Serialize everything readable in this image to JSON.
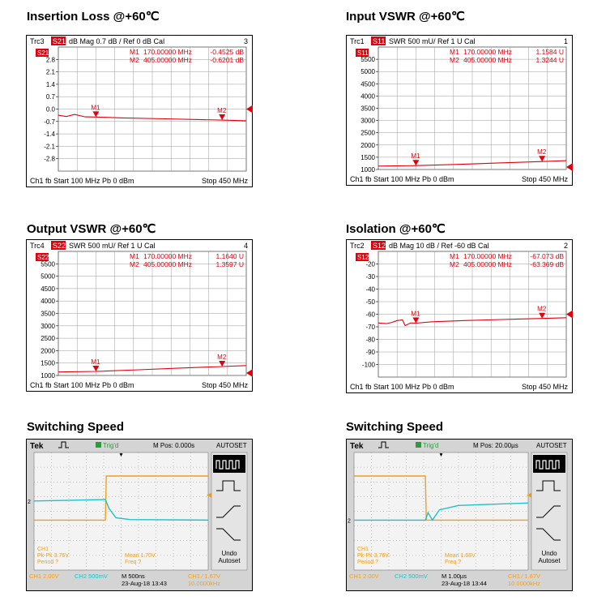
{
  "panels": [
    {
      "title": "Insertion Loss @+60℃",
      "trace": "Trc3",
      "param": "S21",
      "format": "dB Mag  0.7 dB /  Ref 0 dB   Cal",
      "num": "3",
      "markers": [
        {
          "id": "M1",
          "freq": "170.00000 MHz",
          "value": "-0.4525 dB"
        },
        {
          "id": "M2",
          "freq": "405.00000 MHz",
          "value": "-0.6201 dB"
        }
      ],
      "footer": {
        "left": "Ch1  fb  Start  100 MHz  Pb  0 dBm",
        "right": "Stop  450 MHz"
      }
    },
    {
      "title": "Input VSWR @+60℃",
      "trace": "Trc1",
      "param": "S11",
      "format": "SWR  500 mU/  Ref 1 U     Cal",
      "num": "1",
      "markers": [
        {
          "id": "M1",
          "freq": "170.00000 MHz",
          "value": "1.1584 U"
        },
        {
          "id": "M2",
          "freq": "405.00000 MHz",
          "value": "1.3244 U"
        }
      ],
      "footer": {
        "left": "Ch1  fb  Start  100 MHz  Pb  0 dBm",
        "right": "Stop  450 MHz"
      }
    },
    {
      "title": "Output VSWR @+60℃",
      "trace": "Trc4",
      "param": "S22",
      "format": "SWR  500 mU/  Ref 1 U     Cal",
      "num": "4",
      "markers": [
        {
          "id": "M1",
          "freq": "170.00000 MHz",
          "value": "1.1640 U"
        },
        {
          "id": "M2",
          "freq": "405.00000 MHz",
          "value": "1.3597 U"
        }
      ],
      "footer": {
        "left": "Ch1  fb  Start  100 MHz  Pb  0 dBm",
        "right": "Stop  450 MHz"
      }
    },
    {
      "title": "Isolation @+60℃",
      "trace": "Trc2",
      "param": "S12",
      "format": "dB Mag  10 dB /  Ref -60 dB    Cal",
      "num": "2",
      "markers": [
        {
          "id": "M1",
          "freq": "170.00000 MHz",
          "value": "-67.073 dB"
        },
        {
          "id": "M2",
          "freq": "405.00000 MHz",
          "value": "-63.369 dB"
        }
      ],
      "footer": {
        "left": "Ch1  fb  Start  100 MHz  Pb  0 dBm",
        "right": "Stop  450 MHz"
      }
    },
    {
      "title": "Switching Speed",
      "brand": "Tek",
      "trig": "Trig'd",
      "mpos": "M Pos: 0.000s",
      "autoset": "AUTOSET",
      "ch1_meas": [
        "CH1",
        "Pk-Pk 3.76V",
        "Period ?"
      ],
      "mean": [
        "Mean 1.70V",
        "Freq ?"
      ],
      "undo": [
        "Undo",
        "Autoset"
      ],
      "bottom": {
        "ch1": "CH1  2.00V",
        "ch2": "CH2  500mV",
        "time": "M 500ns",
        "date": "23-Aug-18 13:43",
        "trig": "CH1  ⁄  1.67V",
        "freq": "10.0000kHz"
      }
    },
    {
      "title": "Switching Speed",
      "brand": "Tek",
      "trig": "Trig'd",
      "mpos": "M Pos: 20.00µs",
      "autoset": "AUTOSET",
      "ch1_meas": [
        "CH1",
        "Pk-Pk 3.76V",
        "Period ?"
      ],
      "mean": [
        "Mean 1.68V",
        "Freq ?"
      ],
      "undo": [
        "Undo",
        "Autoset"
      ],
      "bottom": {
        "ch1": "CH1  2.00V",
        "ch2": "CH2  500mV",
        "time": "M 1.00µs",
        "date": "23-Aug-18 13:44",
        "trig": "CH1  ⁄  1.67V",
        "freq": "10.0000kHz"
      }
    }
  ],
  "chart_data": [
    {
      "type": "line",
      "title": "Insertion Loss @+60℃",
      "xlim": [
        100,
        450
      ],
      "ylim": [
        -3.5,
        3.5
      ],
      "yticks": [
        "2.8",
        "2.1",
        "1.4",
        "0.7",
        "0.0",
        "-0.7",
        "-1.4",
        "-2.1",
        "-2.8"
      ],
      "ytick_values": [
        2.8,
        2.1,
        1.4,
        0.7,
        0.0,
        -0.7,
        -1.4,
        -2.1,
        -2.8
      ],
      "series": [
        {
          "name": "S21",
          "x": [
            100,
            115,
            130,
            150,
            170,
            220,
            300,
            360,
            405,
            450
          ],
          "y": [
            -0.35,
            -0.42,
            -0.3,
            -0.44,
            -0.45,
            -0.5,
            -0.55,
            -0.59,
            -0.62,
            -0.66
          ]
        }
      ],
      "ref_value": 0.0,
      "marker_points": [
        {
          "x": 170,
          "y": -0.4525
        },
        {
          "x": 405,
          "y": -0.6201
        }
      ]
    },
    {
      "type": "line",
      "title": "Input VSWR @+60℃",
      "xlim": [
        100,
        450
      ],
      "ylim": [
        1000,
        6000
      ],
      "yticks": [
        "5500",
        "5000",
        "4500",
        "4000",
        "3500",
        "3000",
        "2500",
        "2000",
        "1500",
        "1000"
      ],
      "ytick_values": [
        5500,
        5000,
        4500,
        4000,
        3500,
        3000,
        2500,
        2000,
        1500,
        1000
      ],
      "series": [
        {
          "name": "S11",
          "x": [
            100,
            170,
            250,
            330,
            405,
            450
          ],
          "y": [
            1140,
            1158,
            1210,
            1270,
            1324,
            1360
          ]
        }
      ],
      "ref_value": 1000,
      "marker_points": [
        {
          "x": 170,
          "y": 1158.4
        },
        {
          "x": 405,
          "y": 1324.4
        }
      ]
    },
    {
      "type": "line",
      "title": "Output VSWR @+60℃",
      "xlim": [
        100,
        450
      ],
      "ylim": [
        1000,
        6000
      ],
      "yticks": [
        "5500",
        "5000",
        "4500",
        "4000",
        "3500",
        "3000",
        "2500",
        "2000",
        "1500",
        "1000"
      ],
      "ytick_values": [
        5500,
        5000,
        4500,
        4000,
        3500,
        3000,
        2500,
        2000,
        1500,
        1000
      ],
      "series": [
        {
          "name": "S22",
          "x": [
            100,
            170,
            250,
            330,
            405,
            450
          ],
          "y": [
            1140,
            1164,
            1230,
            1300,
            1360,
            1400
          ]
        }
      ],
      "ref_value": 1000,
      "marker_points": [
        {
          "x": 170,
          "y": 1164.0
        },
        {
          "x": 405,
          "y": 1359.7
        }
      ]
    },
    {
      "type": "line",
      "title": "Isolation @+60℃",
      "xlim": [
        100,
        450
      ],
      "ylim": [
        -110,
        -10
      ],
      "yticks": [
        "-20",
        "-30",
        "-40",
        "-50",
        "-60",
        "-70",
        "-80",
        "-90",
        "-100"
      ],
      "ytick_values": [
        -20,
        -30,
        -40,
        -50,
        -60,
        -70,
        -80,
        -90,
        -100
      ],
      "series": [
        {
          "name": "S12",
          "x": [
            100,
            115,
            125,
            135,
            145,
            150,
            155,
            160,
            170,
            200,
            260,
            330,
            405,
            450
          ],
          "y": [
            -67,
            -67.5,
            -66.5,
            -65,
            -64.5,
            -69,
            -68,
            -67,
            -67.07,
            -66,
            -65,
            -64.2,
            -63.37,
            -62.8
          ]
        }
      ],
      "ref_value": -60,
      "marker_points": [
        {
          "x": 170,
          "y": -67.073
        },
        {
          "x": 405,
          "y": -63.369
        }
      ]
    }
  ],
  "scope": [
    {
      "ch1": [
        {
          "x": 0,
          "y": -0.3
        },
        {
          "x": 4.1,
          "y": -0.3
        },
        {
          "x": 4.15,
          "y": 1.2
        },
        {
          "x": 10,
          "y": 1.2
        }
      ],
      "ch2": [
        {
          "x": 0,
          "y": 0.35
        },
        {
          "x": 4.1,
          "y": 0.4
        },
        {
          "x": 4.3,
          "y": 0.1
        },
        {
          "x": 4.7,
          "y": -0.22
        },
        {
          "x": 5.5,
          "y": -0.28
        },
        {
          "x": 10,
          "y": -0.3
        }
      ]
    },
    {
      "ch1": [
        {
          "x": 0,
          "y": 1.2
        },
        {
          "x": 4.1,
          "y": 1.2
        },
        {
          "x": 4.15,
          "y": -0.3
        },
        {
          "x": 10,
          "y": -0.3
        }
      ],
      "ch2": [
        {
          "x": 0,
          "y": -0.3
        },
        {
          "x": 4.1,
          "y": -0.3
        },
        {
          "x": 4.25,
          "y": -0.05
        },
        {
          "x": 4.5,
          "y": -0.3
        },
        {
          "x": 4.9,
          "y": 0.05
        },
        {
          "x": 6,
          "y": 0.2
        },
        {
          "x": 10,
          "y": 0.28
        }
      ]
    }
  ],
  "colors": {
    "trace": "#e3000b",
    "ch1": "#f0a020",
    "ch2": "#20c0c8",
    "grid": "#888888"
  }
}
